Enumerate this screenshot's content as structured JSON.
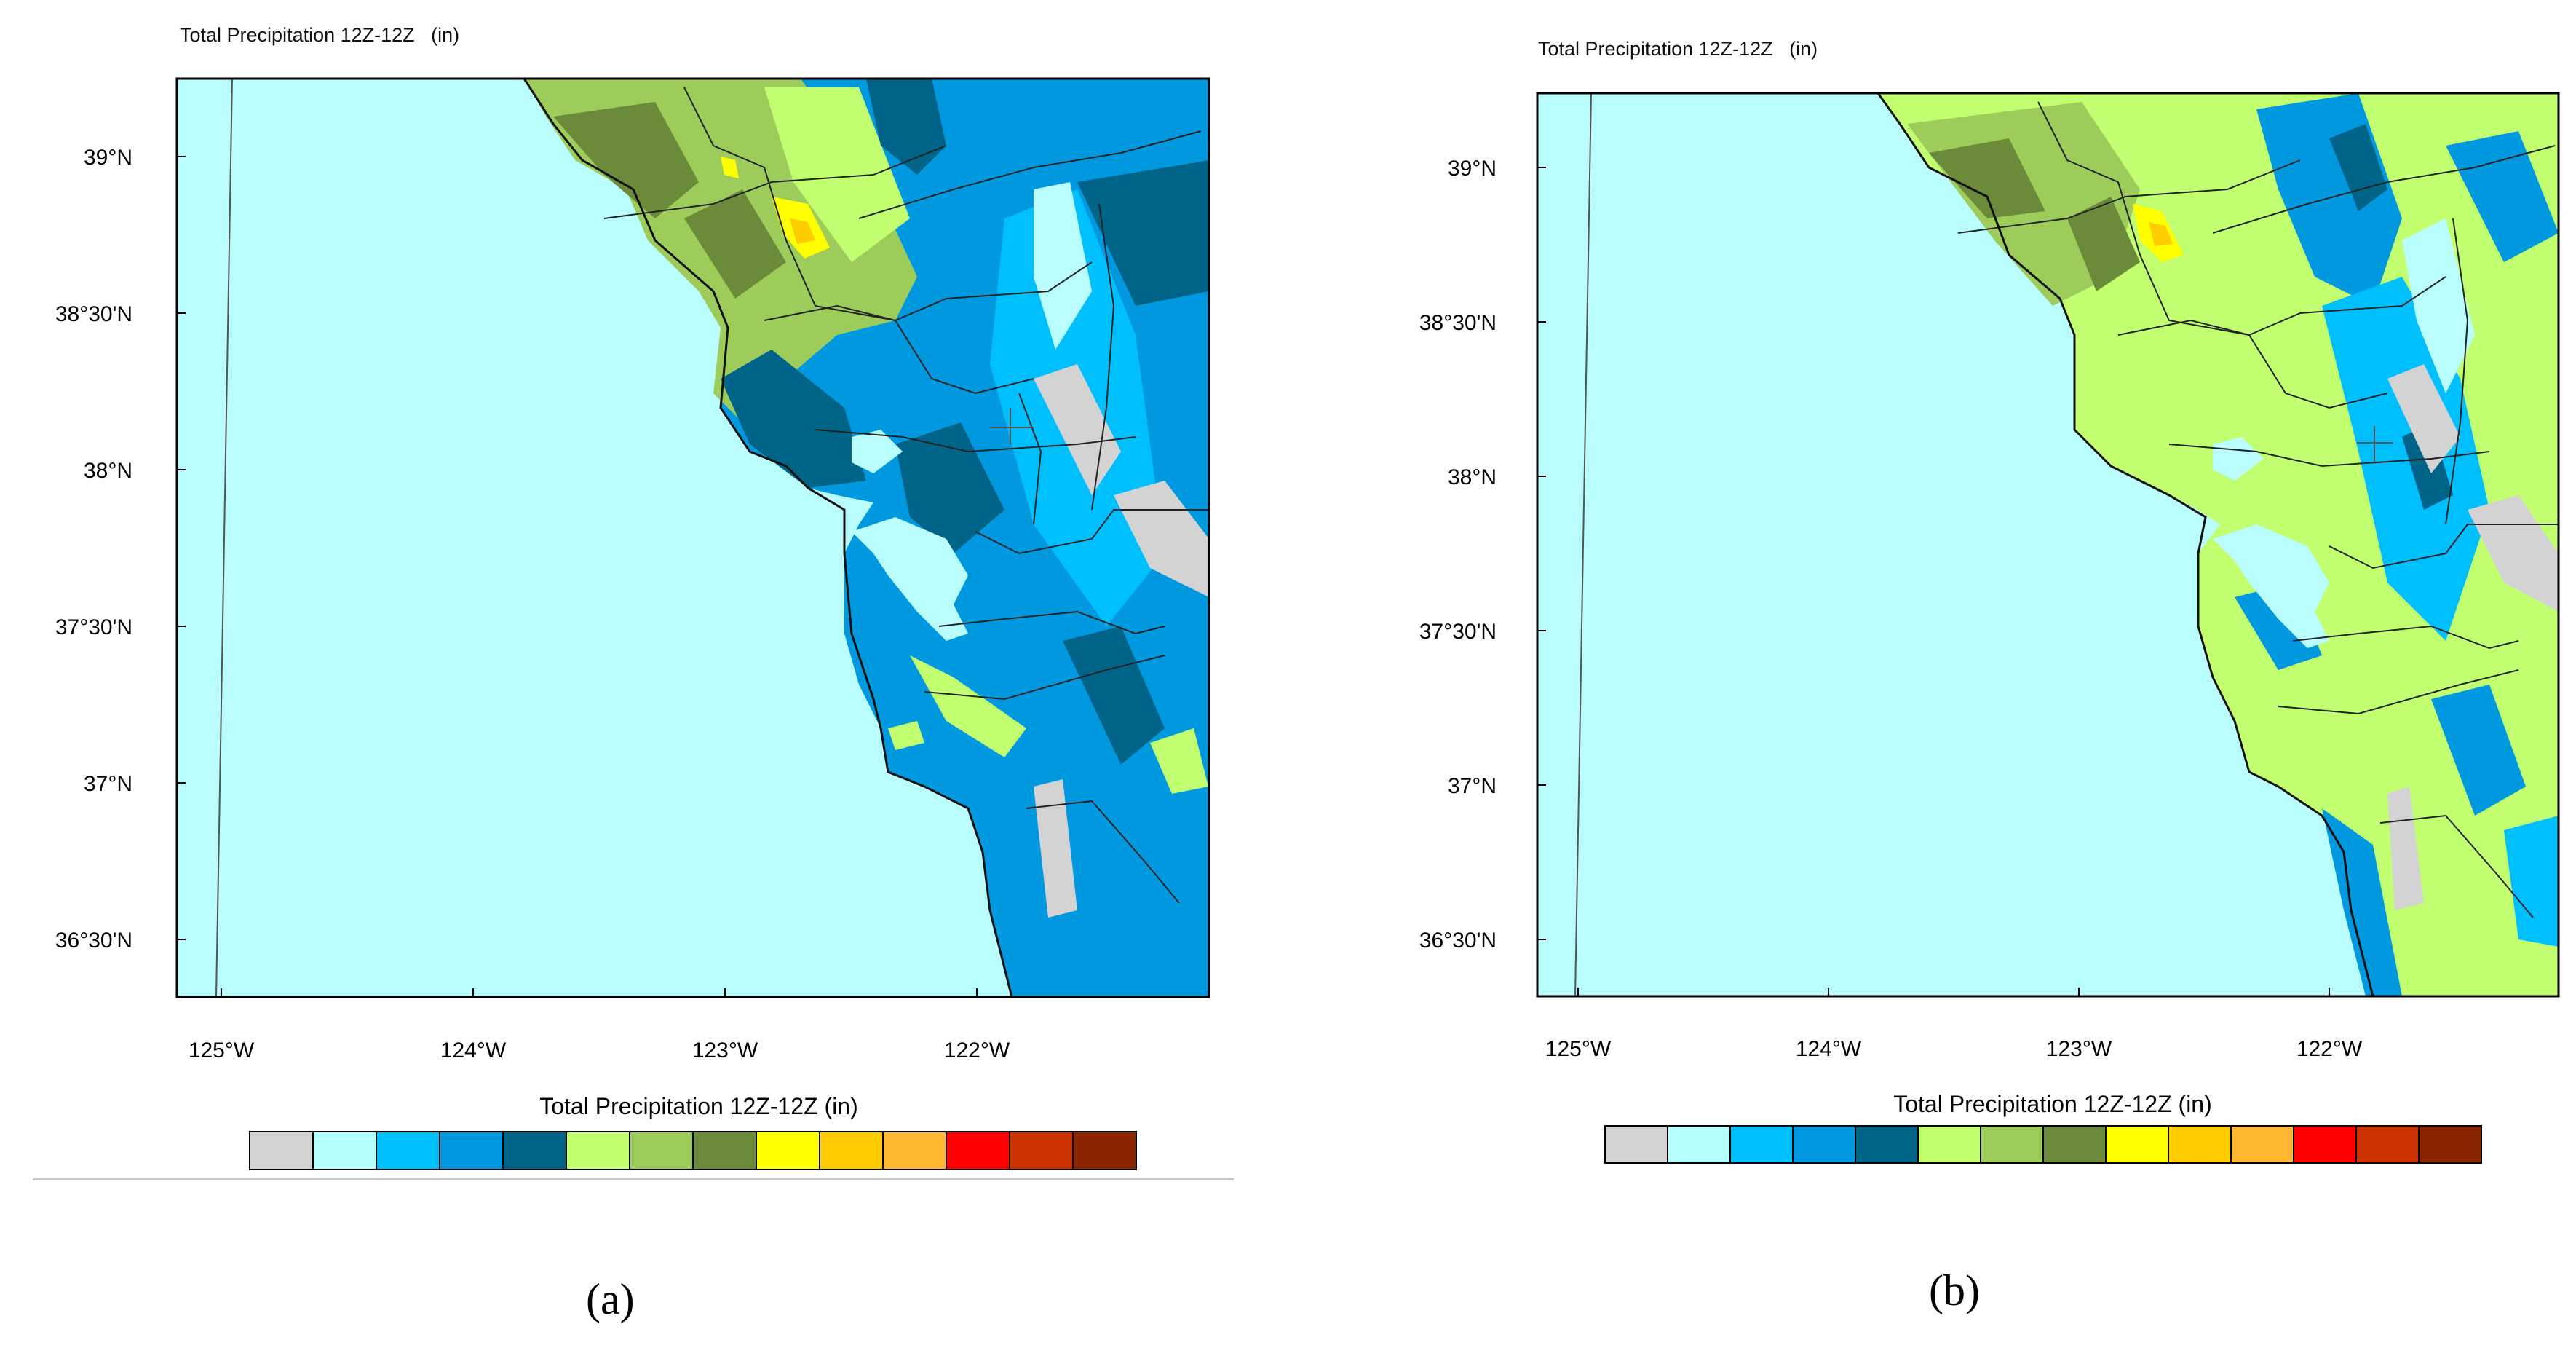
{
  "panels": [
    {
      "id": "a",
      "map_title": "Total Precipitation 12Z-12Z   (in)",
      "colorbar_title": "Total Precipitation 12Z-12Z  (in)",
      "caption": "(a)",
      "lat_labels": [
        "39°N",
        "38°30'N",
        "38°N",
        "37°30'N",
        "37°N",
        "36°30'N"
      ],
      "lon_labels": [
        "125°W",
        "124°W",
        "123°W",
        "122°W"
      ]
    },
    {
      "id": "b",
      "map_title": "Total Precipitation 12Z-12Z   (in)",
      "colorbar_title": "Total Precipitation 12Z-12Z  (in)",
      "caption": "(b)",
      "lat_labels": [
        "39°N",
        "38°30'N",
        "38°N",
        "37°30'N",
        "37°N",
        "36°30'N"
      ],
      "lon_labels": [
        "125°W",
        "124°W",
        "123°W",
        "122°W"
      ]
    }
  ],
  "colorbar_colors": [
    "#d3d3d3",
    "#b4ffff",
    "#00bfff",
    "#0099e0",
    "#006488",
    "#c2ff70",
    "#9dcc5a",
    "#6b8a3a",
    "#ffff00",
    "#ffcc00",
    "#ffb833",
    "#ff0000",
    "#cc3300",
    "#8b2500"
  ],
  "colors": {
    "ocean": "#b9fdfe",
    "land_light": "#c2ff70",
    "land_mid": "#9dcc5a",
    "land_dark": "#6b8a3a",
    "blue_light": "#00bfff",
    "blue_mid": "#0099e0",
    "blue_dark": "#006488",
    "gray": "#d3d3d3",
    "yellow": "#ffff00",
    "orange": "#ffcc00"
  }
}
